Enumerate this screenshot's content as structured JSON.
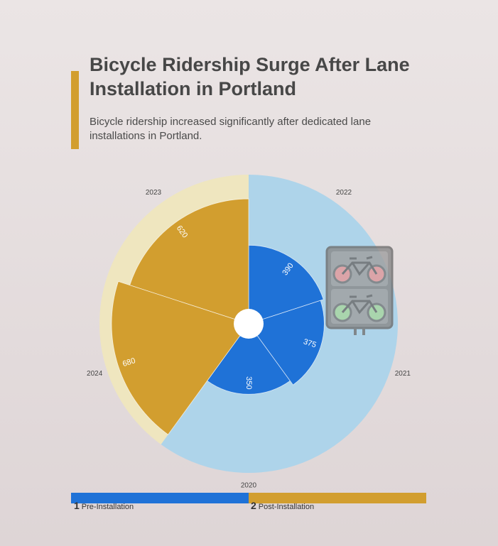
{
  "header": {
    "title": "Bicycle Ridership Surge After Lane Installation in Portland",
    "subtitle": "Bicycle ridership increased significantly after dedicated lane installations in Portland."
  },
  "legend": {
    "items": [
      {
        "num": "1",
        "label": "Pre-Installation"
      },
      {
        "num": "2",
        "label": "Post-Installation"
      }
    ]
  },
  "icons": {
    "signal": "bicycle-traffic-signal-icon"
  },
  "colors": {
    "pre": "#1f72d7",
    "pre_bg": "#aed4ea",
    "post": "#d29e2f",
    "post_bg": "#efe6bf",
    "accent": "#d29e2f"
  },
  "chart_data": {
    "type": "polar-bar",
    "categories": [
      "2020",
      "2021",
      "2022",
      "2023",
      "2024"
    ],
    "series": [
      {
        "name": "Pre-Installation",
        "values": [
          350,
          375,
          390,
          null,
          null
        ]
      },
      {
        "name": "Post-Installation",
        "values": [
          null,
          null,
          null,
          620,
          680
        ]
      }
    ],
    "value_labels": [
      "350",
      "375",
      "390",
      "620",
      "680"
    ],
    "rmax": 740,
    "legend_position": "bottom",
    "grid": false
  }
}
